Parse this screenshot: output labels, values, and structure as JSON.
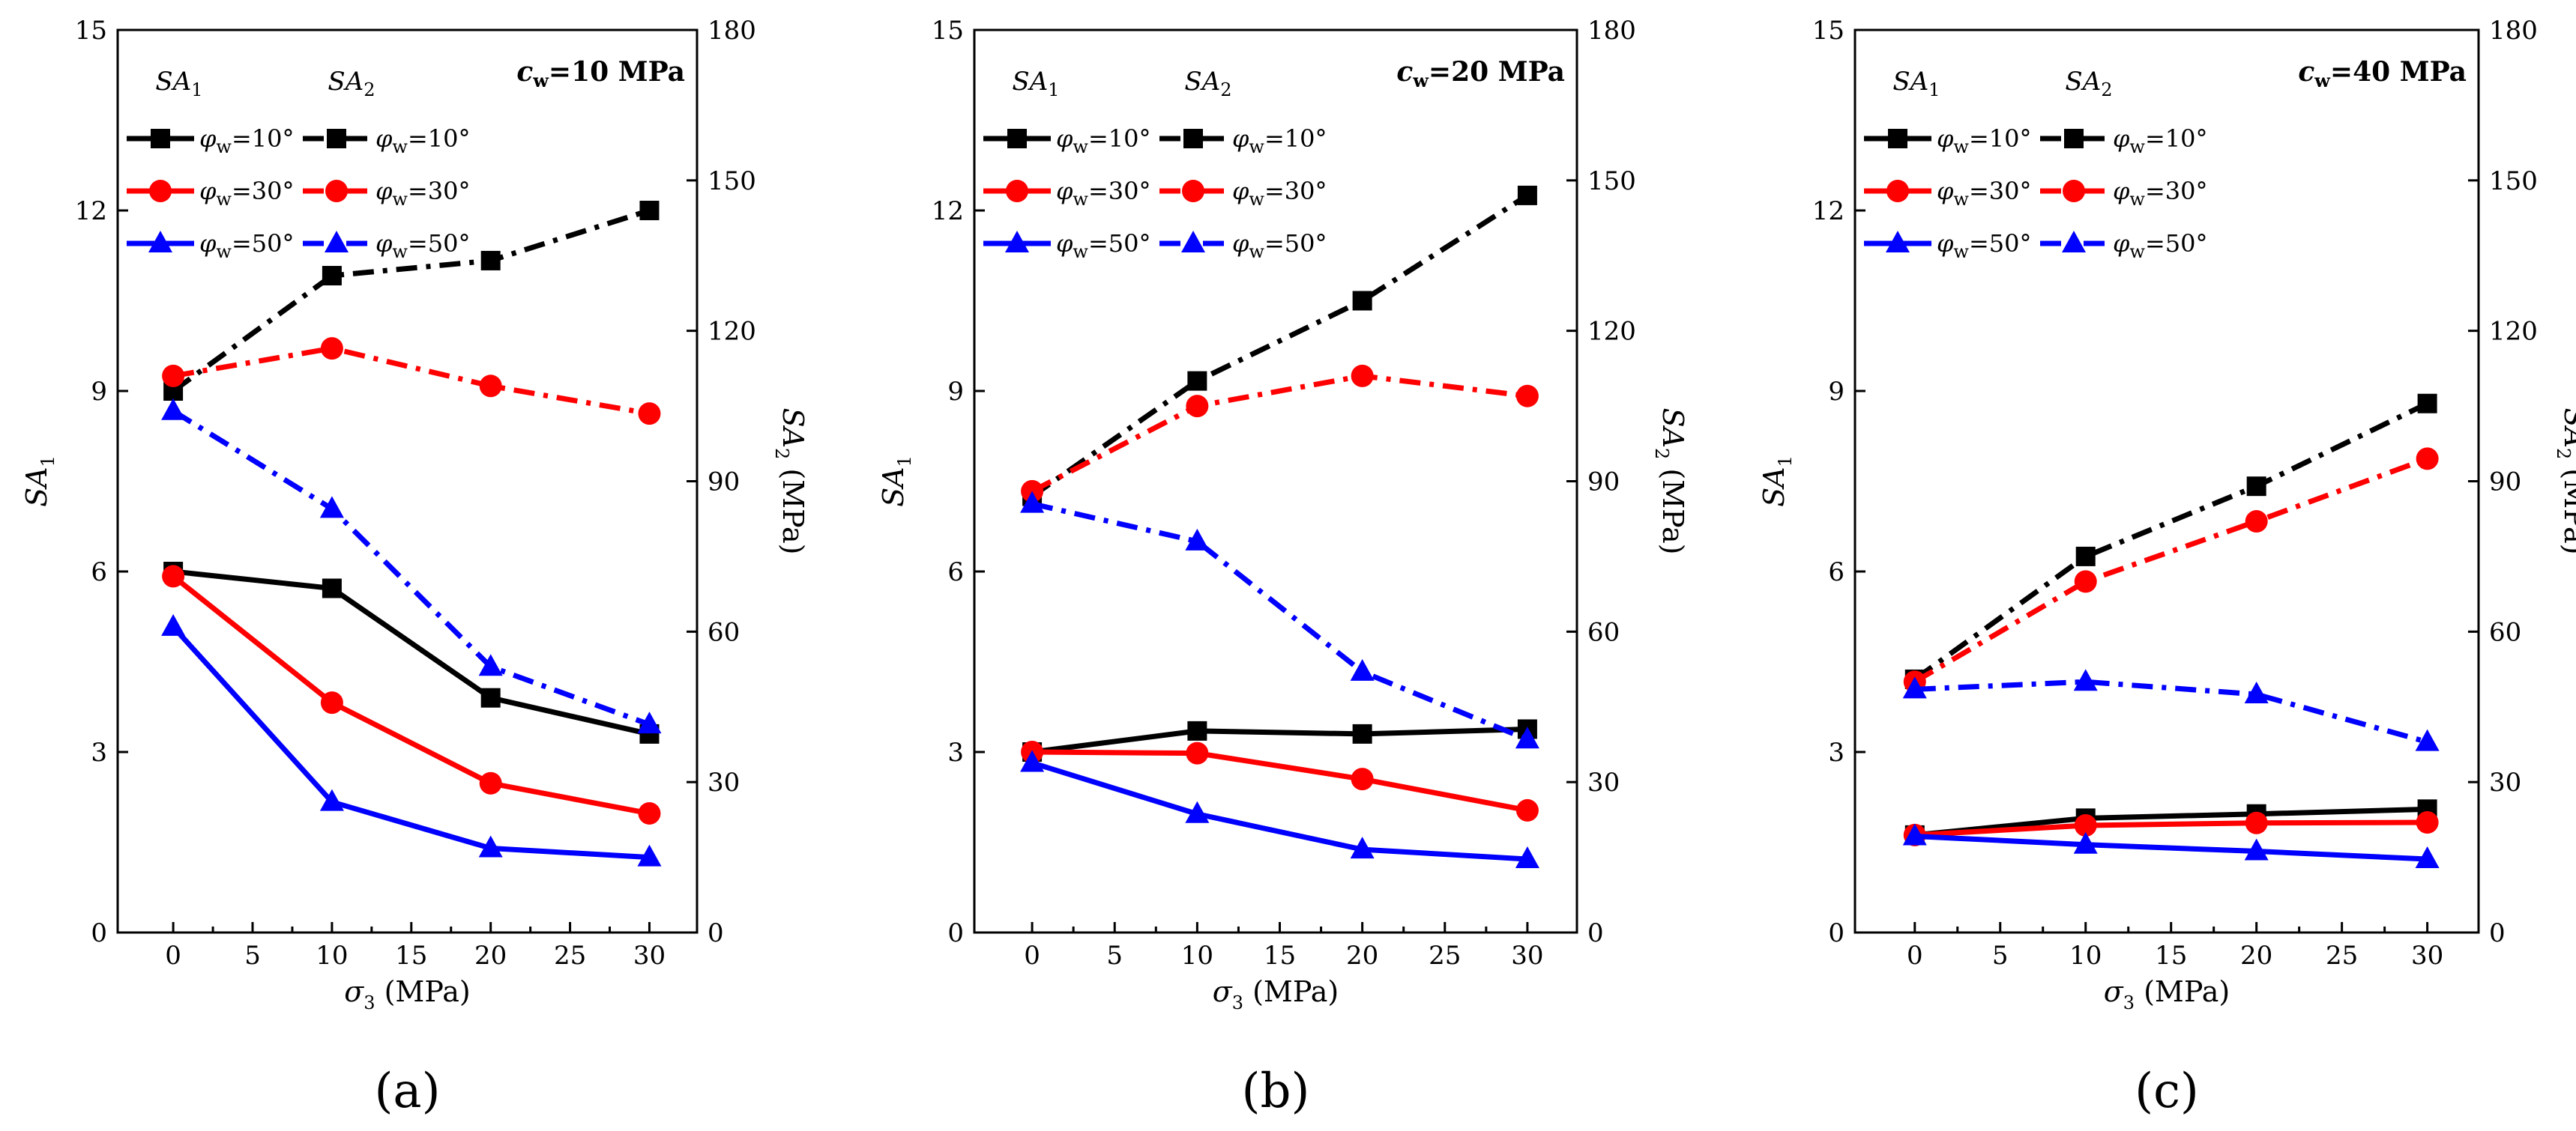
{
  "figure": {
    "x_unit_label": "(MPa)",
    "y1_label": "SA",
    "y1_sub": "1",
    "y2_label": "SA",
    "y2_sub": "2",
    "y2_unit": "(MPa)",
    "x_symbol": "σ",
    "x_sub": "3",
    "legend_col1": "SA",
    "legend_col1_sub": "1",
    "legend_col2": "SA",
    "legend_col2_sub": "2",
    "legend_entries": [
      {
        "sym": "φ",
        "sub": "w",
        "value": "=10°"
      },
      {
        "sym": "φ",
        "sub": "w",
        "value": "=30°"
      },
      {
        "sym": "φ",
        "sub": "w",
        "value": "=50°"
      }
    ],
    "colors": {
      "phi10": "#000000",
      "phi30": "#ff0000",
      "phi50": "#0000ff"
    },
    "markers": {
      "phi10": "square",
      "phi30": "circle",
      "phi50": "triangle"
    }
  },
  "chart_data": [
    {
      "type": "line",
      "panel_label": "(a)",
      "annotation": {
        "sym": "c",
        "sub": "w",
        "value": "=10 MPa"
      },
      "x": [
        0,
        10,
        20,
        30
      ],
      "xlim": [
        -3.5,
        33
      ],
      "x_ticks": [
        "0",
        "5",
        "10",
        "15",
        "20",
        "25",
        "30"
      ],
      "ylim_left": [
        0,
        15
      ],
      "y_ticks_left": [
        "0",
        "3",
        "6",
        "9",
        "12",
        "15"
      ],
      "ylim_right": [
        0,
        180
      ],
      "y_ticks_right": [
        "0",
        "30",
        "60",
        "90",
        "120",
        "150",
        "180"
      ],
      "series": [
        {
          "name": "SA1 φw=10°",
          "axis": "left",
          "style": "solid",
          "color_key": "phi10",
          "values": [
            6.0,
            5.72,
            3.9,
            3.3
          ]
        },
        {
          "name": "SA1 φw=30°",
          "axis": "left",
          "style": "solid",
          "color_key": "phi30",
          "values": [
            5.92,
            3.82,
            2.48,
            1.98
          ]
        },
        {
          "name": "SA1 φw=50°",
          "axis": "left",
          "style": "solid",
          "color_key": "phi50",
          "values": [
            5.08,
            2.17,
            1.4,
            1.25
          ]
        },
        {
          "name": "SA2 φw=10°",
          "axis": "right",
          "style": "dashdot",
          "color_key": "phi10",
          "values": [
            108,
            131,
            134,
            144
          ]
        },
        {
          "name": "SA2 φw=30°",
          "axis": "right",
          "style": "dashdot",
          "color_key": "phi30",
          "values": [
            111,
            116.5,
            109,
            103.5
          ]
        },
        {
          "name": "SA2 φw=50°",
          "axis": "right",
          "style": "dashdot",
          "color_key": "phi50",
          "values": [
            104,
            84.5,
            53,
            41.5
          ]
        }
      ]
    },
    {
      "type": "line",
      "panel_label": "(b)",
      "annotation": {
        "sym": "c",
        "sub": "w",
        "value": "=20 MPa"
      },
      "x": [
        0,
        10,
        20,
        30
      ],
      "xlim": [
        -3.5,
        33
      ],
      "x_ticks": [
        "0",
        "5",
        "10",
        "15",
        "20",
        "25",
        "30"
      ],
      "ylim_left": [
        0,
        15
      ],
      "y_ticks_left": [
        "0",
        "3",
        "6",
        "9",
        "12",
        "15"
      ],
      "ylim_right": [
        0,
        180
      ],
      "y_ticks_right": [
        "0",
        "30",
        "60",
        "90",
        "120",
        "150",
        "180"
      ],
      "series": [
        {
          "name": "SA1 φw=10°",
          "axis": "left",
          "style": "solid",
          "color_key": "phi10",
          "values": [
            3.0,
            3.35,
            3.3,
            3.38
          ]
        },
        {
          "name": "SA1 φw=30°",
          "axis": "left",
          "style": "solid",
          "color_key": "phi30",
          "values": [
            3.0,
            2.98,
            2.55,
            2.03
          ]
        },
        {
          "name": "SA1 φw=50°",
          "axis": "left",
          "style": "solid",
          "color_key": "phi50",
          "values": [
            2.82,
            1.97,
            1.38,
            1.22
          ]
        },
        {
          "name": "SA2 φw=10°",
          "axis": "right",
          "style": "dashdot",
          "color_key": "phi10",
          "values": [
            87,
            110,
            126,
            147
          ]
        },
        {
          "name": "SA2 φw=30°",
          "axis": "right",
          "style": "dashdot",
          "color_key": "phi30",
          "values": [
            88,
            105,
            111,
            107
          ]
        },
        {
          "name": "SA2 φw=50°",
          "axis": "right",
          "style": "dashdot",
          "color_key": "phi50",
          "values": [
            85.5,
            78,
            52,
            38.5
          ]
        }
      ]
    },
    {
      "type": "line",
      "panel_label": "(c)",
      "annotation": {
        "sym": "c",
        "sub": "w",
        "value": "=40 MPa"
      },
      "x": [
        0,
        10,
        20,
        30
      ],
      "xlim": [
        -3.5,
        33
      ],
      "x_ticks": [
        "0",
        "5",
        "10",
        "15",
        "20",
        "25",
        "30"
      ],
      "ylim_left": [
        0,
        15
      ],
      "y_ticks_left": [
        "0",
        "3",
        "6",
        "9",
        "12",
        "15"
      ],
      "ylim_right": [
        0,
        180
      ],
      "y_ticks_right": [
        "0",
        "30",
        "60",
        "90",
        "120",
        "150",
        "180"
      ],
      "series": [
        {
          "name": "SA1 φw=10°",
          "axis": "left",
          "style": "solid",
          "color_key": "phi10",
          "values": [
            1.62,
            1.9,
            1.97,
            2.05
          ]
        },
        {
          "name": "SA1 φw=30°",
          "axis": "left",
          "style": "solid",
          "color_key": "phi30",
          "values": [
            1.62,
            1.78,
            1.82,
            1.83
          ]
        },
        {
          "name": "SA1 φw=50°",
          "axis": "left",
          "style": "solid",
          "color_key": "phi50",
          "values": [
            1.6,
            1.46,
            1.35,
            1.22
          ]
        },
        {
          "name": "SA2 φw=10°",
          "axis": "right",
          "style": "dashdot",
          "color_key": "phi10",
          "values": [
            50.5,
            75,
            89,
            105.5
          ]
        },
        {
          "name": "SA2 φw=30°",
          "axis": "right",
          "style": "dashdot",
          "color_key": "phi30",
          "values": [
            50,
            70,
            82,
            94.5
          ]
        },
        {
          "name": "SA2 φw=50°",
          "axis": "right",
          "style": "dashdot",
          "color_key": "phi50",
          "values": [
            48.5,
            50,
            47.5,
            38
          ]
        }
      ]
    }
  ]
}
